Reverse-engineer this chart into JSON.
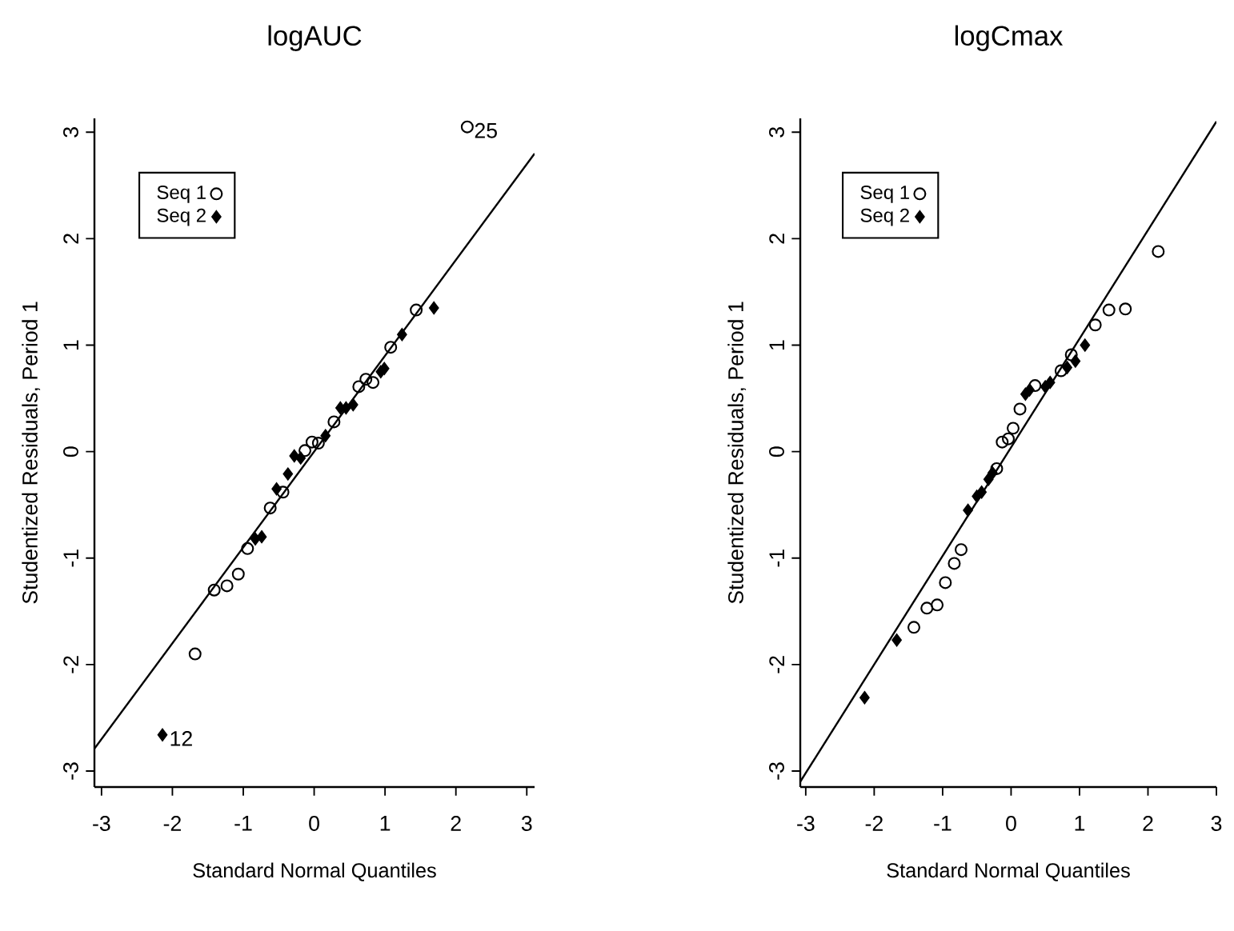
{
  "chart_data": [
    {
      "type": "scatter",
      "title": "logAUC",
      "xlabel": "Standard Normal Quantiles",
      "ylabel": "Studentized Residuals, Period 1",
      "xlim": [
        -3.1,
        3.11
      ],
      "ylim": [
        -3.15,
        3.13
      ],
      "xticks": [
        -3,
        -2,
        -1,
        0,
        1,
        2,
        3
      ],
      "yticks": [
        -3,
        -2,
        -1,
        0,
        1,
        2,
        3
      ],
      "legend": "top left",
      "series": [
        {
          "name": "Seq 1",
          "color": "#000000",
          "marker": "circle",
          "x": [
            2.16,
            1.44,
            1.08,
            0.83,
            0.73,
            0.63,
            0.28,
            0.06,
            -0.03,
            -0.13,
            -0.44,
            -0.62,
            -0.94,
            -1.07,
            -1.23,
            -1.41,
            -1.68
          ],
          "values": [
            3.05,
            1.33,
            0.98,
            0.65,
            0.68,
            0.61,
            0.28,
            0.08,
            0.09,
            0.01,
            -0.38,
            -0.53,
            -0.91,
            -1.15,
            -1.26,
            -1.3,
            -1.9
          ]
        },
        {
          "name": "Seq 2",
          "color": "#000000",
          "marker": "diamond",
          "x": [
            -2.14,
            -0.74,
            -0.83,
            -0.53,
            -0.37,
            -0.28,
            -0.19,
            0.16,
            0.37,
            0.45,
            0.55,
            0.94,
            0.99,
            1.24,
            1.69
          ],
          "values": [
            -2.66,
            -0.8,
            -0.82,
            -0.35,
            -0.21,
            -0.04,
            -0.06,
            0.15,
            0.41,
            0.41,
            0.44,
            0.75,
            0.78,
            1.1,
            1.35
          ]
        },
        {
          "type": "line",
          "color": "#000000",
          "x": [
            -3.1,
            3.11
          ],
          "values": [
            -2.79,
            2.8
          ]
        }
      ],
      "annotations": [
        {
          "text": "25",
          "x": 2.16,
          "y": 3.05
        },
        {
          "text": "12",
          "x": -2.14,
          "y": -2.66
        }
      ]
    },
    {
      "type": "scatter",
      "title": "logCmax",
      "xlabel": "Standard Normal Quantiles",
      "ylabel": "Studentized Residuals, Period 1",
      "xlim": [
        -3.08,
        3.0
      ],
      "ylim": [
        -3.15,
        3.13
      ],
      "xticks": [
        -3,
        -2,
        -1,
        0,
        1,
        2,
        3
      ],
      "yticks": [
        -3,
        -2,
        -1,
        0,
        1,
        2,
        3
      ],
      "legend": "top left",
      "series": [
        {
          "name": "Seq 1",
          "color": "#000000",
          "marker": "circle",
          "x": [
            2.15,
            1.67,
            1.43,
            1.23,
            0.88,
            0.73,
            0.35,
            0.13,
            0.03,
            -0.04,
            -0.13,
            -0.21,
            -0.73,
            -0.83,
            -0.96,
            -1.08,
            -1.23,
            -1.42
          ],
          "values": [
            1.88,
            1.34,
            1.33,
            1.19,
            0.91,
            0.76,
            0.62,
            0.4,
            0.22,
            0.12,
            0.09,
            -0.16,
            -0.92,
            -1.05,
            -1.23,
            -1.44,
            -1.47,
            -1.65
          ]
        },
        {
          "name": "Seq 2",
          "color": "#000000",
          "marker": "diamond",
          "x": [
            -2.14,
            -1.67,
            -0.63,
            -0.5,
            -0.43,
            -0.33,
            -0.27,
            0.21,
            0.27,
            0.5,
            0.57,
            0.82,
            0.94,
            1.08
          ],
          "values": [
            -2.31,
            -1.77,
            -0.55,
            -0.42,
            -0.38,
            -0.26,
            -0.2,
            0.54,
            0.58,
            0.61,
            0.65,
            0.79,
            0.85,
            1.0
          ]
        },
        {
          "type": "line",
          "color": "#000000",
          "x": [
            -3.08,
            3.0
          ],
          "values": [
            -3.1,
            3.1
          ]
        }
      ]
    }
  ]
}
